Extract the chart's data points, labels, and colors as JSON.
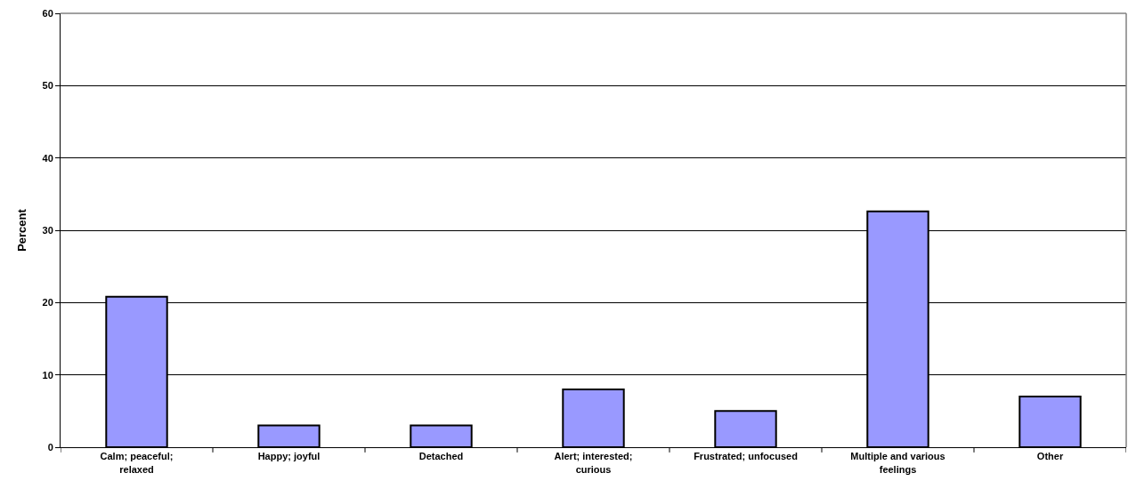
{
  "chart_data": {
    "type": "bar",
    "ylabel": "Percent",
    "categories": [
      "Calm; peaceful; relaxed",
      "Happy; joyful",
      "Detached",
      "Alert; interested; curious",
      "Frustrated; unfocused",
      "Multiple and various feelings",
      "Other"
    ],
    "values": [
      20.8,
      3,
      3,
      8,
      5,
      32.6,
      7
    ],
    "color": "#9999ff",
    "ylim": [
      0,
      60
    ],
    "yticks": [
      0,
      10,
      20,
      30,
      40,
      50,
      60
    ],
    "grid": "y"
  }
}
